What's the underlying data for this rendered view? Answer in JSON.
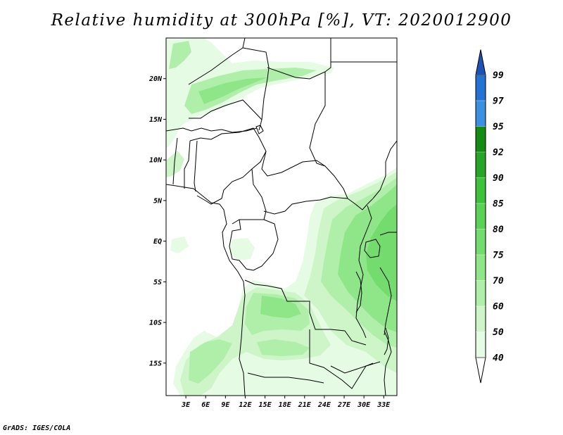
{
  "title": "Relative humidity at 300hPa [%], VT: 2020012900",
  "footer": "GrADS: IGES/COLA",
  "map": {
    "projection": "lat-lon",
    "lon_range": [
      0,
      35
    ],
    "lat_range": [
      -19,
      25
    ],
    "lat_ticks": [
      {
        "value": 20,
        "label": "20N"
      },
      {
        "value": 15,
        "label": "15N"
      },
      {
        "value": 10,
        "label": "10N"
      },
      {
        "value": 5,
        "label": "5N"
      },
      {
        "value": 0,
        "label": "EQ"
      },
      {
        "value": -5,
        "label": "5S"
      },
      {
        "value": -10,
        "label": "10S"
      },
      {
        "value": -15,
        "label": "15S"
      }
    ],
    "lon_ticks": [
      {
        "value": 3,
        "label": "3E"
      },
      {
        "value": 6,
        "label": "6E"
      },
      {
        "value": 9,
        "label": "9E"
      },
      {
        "value": 12,
        "label": "12E"
      },
      {
        "value": 15,
        "label": "15E"
      },
      {
        "value": 18,
        "label": "18E"
      },
      {
        "value": 21,
        "label": "21E"
      },
      {
        "value": 24,
        "label": "24E"
      },
      {
        "value": 27,
        "label": "27E"
      },
      {
        "value": 30,
        "label": "30E"
      },
      {
        "value": 33,
        "label": "33E"
      }
    ]
  },
  "colorbar": {
    "levels": [
      {
        "label": "40",
        "color": "#e6fbe4"
      },
      {
        "label": "50",
        "color": "#cdf5c8"
      },
      {
        "label": "60",
        "color": "#b0efaa"
      },
      {
        "label": "70",
        "color": "#8fe689"
      },
      {
        "label": "75",
        "color": "#74dc6e"
      },
      {
        "label": "80",
        "color": "#5bd256"
      },
      {
        "label": "85",
        "color": "#3fc13c"
      },
      {
        "label": "90",
        "color": "#28a528"
      },
      {
        "label": "92",
        "color": "#158a15"
      },
      {
        "label": "95",
        "color": "#3d8fe0"
      },
      {
        "label": "97",
        "color": "#2472d2"
      },
      {
        "label": "99",
        "color": "#1f5ec0"
      }
    ],
    "bottom_color": "#ffffff",
    "top_color": "#1c52b3"
  }
}
